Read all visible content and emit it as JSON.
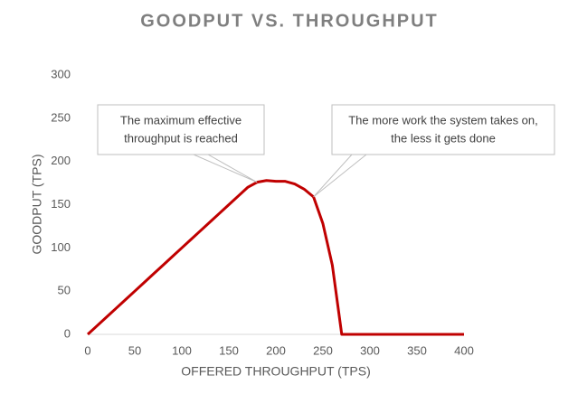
{
  "chart_data": {
    "type": "line",
    "title": "GOODPUT VS. THROUGHPUT",
    "x_label": "OFFERED THROUGHPUT (TPS)",
    "y_label": "GOODPUT (TPS)",
    "x": [
      0,
      10,
      20,
      30,
      40,
      50,
      60,
      70,
      80,
      90,
      100,
      110,
      120,
      130,
      140,
      150,
      160,
      170,
      180,
      190,
      200,
      210,
      220,
      230,
      240,
      250,
      260,
      270,
      400
    ],
    "series": [
      {
        "name": "Goodput",
        "color": "#c00000",
        "values": [
          0,
          10,
          20,
          30,
          40,
          50,
          60,
          70,
          80,
          90,
          100,
          110,
          120,
          130,
          140,
          150,
          160,
          170,
          176,
          178,
          177,
          177,
          174,
          168,
          159,
          128,
          80,
          0,
          0
        ]
      }
    ],
    "xlim": [
      0,
      400
    ],
    "xticks": [
      0,
      50,
      100,
      150,
      200,
      250,
      300,
      350,
      400
    ],
    "ylim": [
      0,
      300
    ],
    "yticks": [
      0,
      50,
      100,
      150,
      200,
      250,
      300
    ],
    "annotations": [
      {
        "lines": [
          "The maximum effective",
          "throughput is reached"
        ]
      },
      {
        "lines": [
          "The more work the system takes on,",
          "the less it gets done"
        ]
      }
    ]
  }
}
